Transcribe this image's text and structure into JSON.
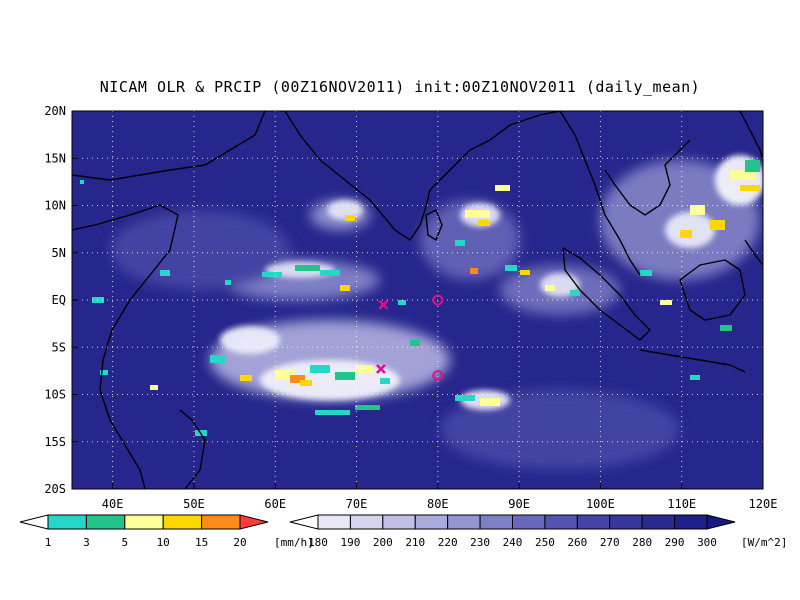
{
  "title": "NICAM OLR & PRCIP (00Z16NOV2011) init:00Z10NOV2011 (daily_mean)",
  "map": {
    "lon_range": [
      35,
      120
    ],
    "lat_range": [
      -20,
      20
    ],
    "x_ticks": [
      "40E",
      "50E",
      "60E",
      "70E",
      "80E",
      "90E",
      "100E",
      "110E",
      "120E"
    ],
    "y_ticks": [
      "20N",
      "15N",
      "10N",
      "5N",
      "EQ",
      "5S",
      "10S",
      "15S",
      "20S"
    ],
    "grid": "dotted",
    "markers": [
      {
        "type": "circle",
        "lon": 80,
        "lat": 0,
        "color": "#e0108a"
      },
      {
        "type": "circle",
        "lon": 80,
        "lat": -8,
        "color": "#e0108a"
      },
      {
        "type": "cross",
        "lon": 73.3,
        "lat": -0.5,
        "color": "#e0108a"
      },
      {
        "type": "cross",
        "lon": 73,
        "lat": -7.3,
        "color": "#e0108a"
      }
    ],
    "colors": {
      "ocean": "#24248a",
      "land_base": "#3d3da8",
      "cloud": "#e8e8f8",
      "coast": "#000000"
    }
  },
  "precip_bar": {
    "labels": [
      "1",
      "3",
      "5",
      "10",
      "15",
      "20"
    ],
    "unit": "[mm/h]",
    "colors": [
      "#ffffff",
      "#26d6c6",
      "#22c48a",
      "#ffff99",
      "#ffd700",
      "#ff8c1a",
      "#ff3b3b"
    ]
  },
  "olr_bar": {
    "labels": [
      "180",
      "190",
      "200",
      "210",
      "220",
      "230",
      "240",
      "250",
      "260",
      "270",
      "280",
      "290",
      "300"
    ],
    "unit": "[W/m^2]",
    "colors": [
      "#ffffff",
      "#e8e8f6",
      "#d4d4ee",
      "#c0c0e6",
      "#aaaadc",
      "#9494d0",
      "#7e7ec6",
      "#6868bc",
      "#5454b0",
      "#4444a6",
      "#36369c",
      "#2a2a92",
      "#20208a",
      "#181880"
    ]
  }
}
